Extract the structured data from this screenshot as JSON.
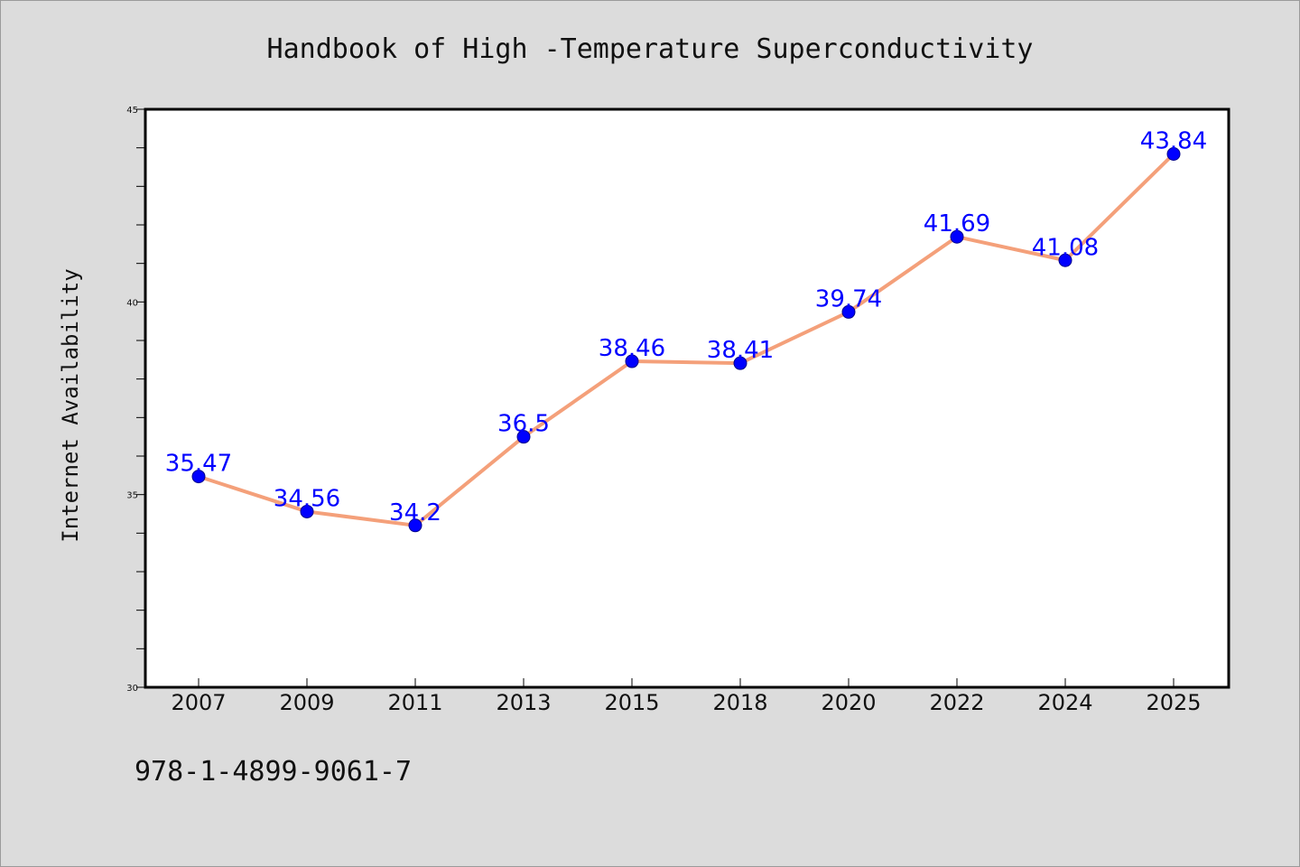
{
  "chart_data": {
    "type": "line",
    "title": "Handbook of High -Temperature Superconductivity",
    "xlabel": "",
    "ylabel": "Internet Availability",
    "categories": [
      "2007",
      "2009",
      "2011",
      "2013",
      "2015",
      "2018",
      "2020",
      "2022",
      "2024",
      "2025"
    ],
    "series": [
      {
        "values": [
          35.47,
          34.56,
          34.2,
          36.5,
          38.46,
          38.41,
          39.74,
          41.69,
          41.08,
          43.84
        ]
      }
    ],
    "data_labels": [
      "35.47",
      "34.56",
      "34.2",
      "36.5",
      "38.46",
      "38.41",
      "39.74",
      "41.69",
      "41.08",
      "43.84"
    ],
    "ylim": [
      30,
      45
    ],
    "y_major_ticks": [
      30,
      35,
      40,
      45
    ],
    "y_major_tick_labels": [
      "30",
      "35",
      "40",
      "45"
    ],
    "y_minor_step": 1,
    "grid": false,
    "legend": "none",
    "colors": {
      "line": "#f4a07a",
      "marker": "#0000ff",
      "label": "#0000ff",
      "background": "#dcdcdc",
      "plot_background": "#ffffff"
    }
  },
  "footer": {
    "isbn": "978-1-4899-9061-7"
  }
}
